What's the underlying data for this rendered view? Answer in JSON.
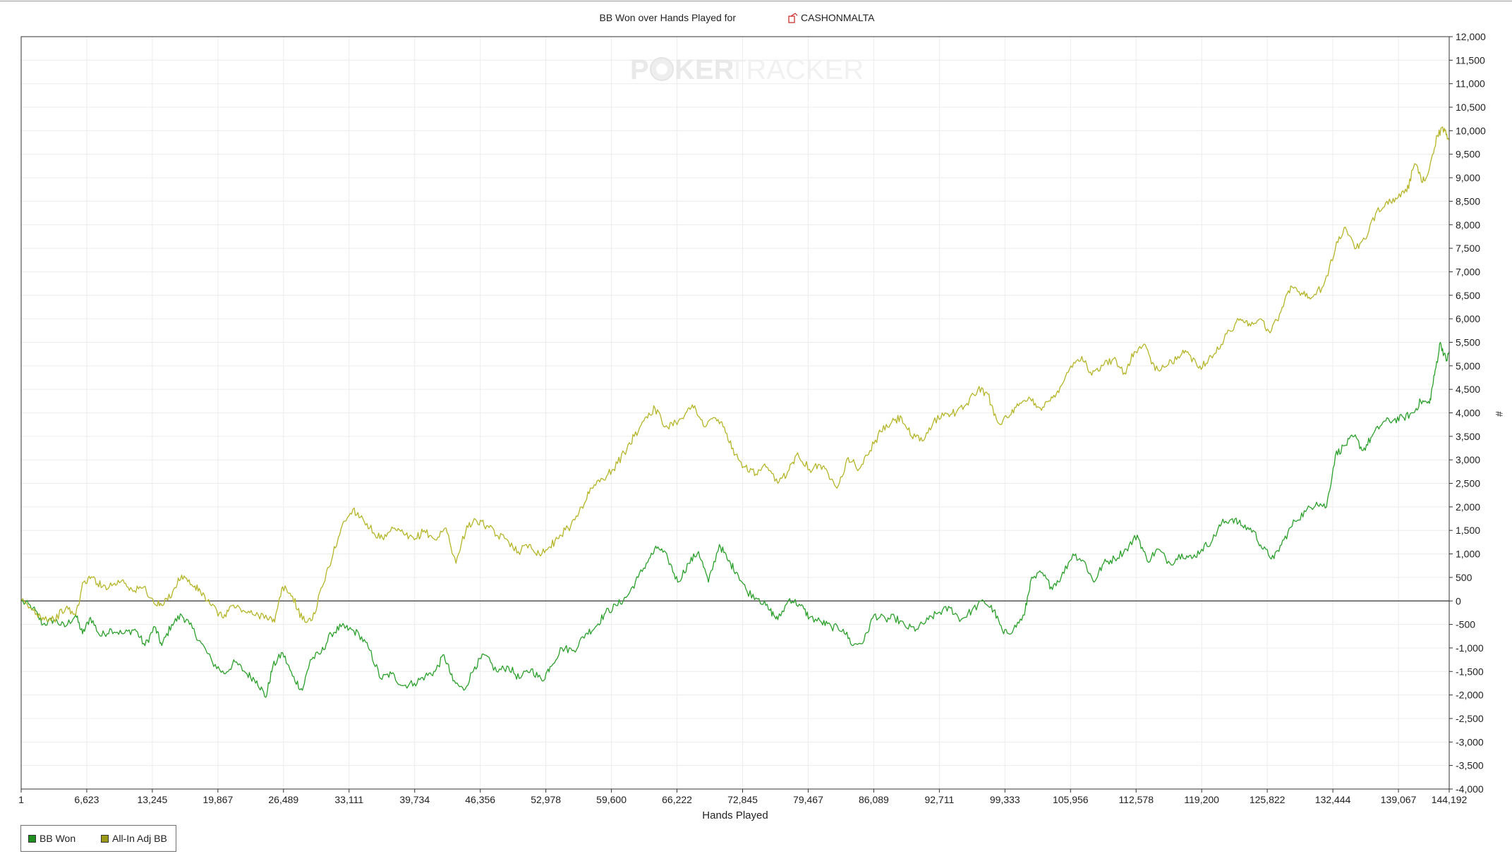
{
  "chart_data": {
    "type": "line",
    "title": "BB Won over Hands Played for",
    "player_name": "CASHONMALTA",
    "player_icon": "player-icon",
    "watermark": {
      "left": "P",
      "chip": "chip-icon",
      "middle": "KER",
      "right": "TRACKER"
    },
    "xlabel": "Hands Played",
    "ylabel": "#",
    "xlim": [
      1,
      144192
    ],
    "ylim": [
      -4000,
      12000
    ],
    "x_tick_labels": [
      "1",
      "6,623",
      "13,245",
      "19,867",
      "26,489",
      "33,111",
      "39,734",
      "46,356",
      "52,978",
      "59,600",
      "66,222",
      "72,845",
      "79,467",
      "86,089",
      "92,711",
      "99,333",
      "105,956",
      "112,578",
      "119,200",
      "125,822",
      "132,444",
      "139,067",
      "144,192"
    ],
    "y_tick_labels": [
      "12,000",
      "11,500",
      "11,000",
      "10,500",
      "10,000",
      "9,500",
      "9,000",
      "8,500",
      "8,000",
      "7,500",
      "7,000",
      "6,500",
      "6,000",
      "5,500",
      "5,000",
      "4,500",
      "4,000",
      "3,500",
      "3,000",
      "2,500",
      "2,000",
      "1,500",
      "1,000",
      "500",
      "0",
      "-500",
      "-1,000",
      "-1,500",
      "-2,000",
      "-2,500",
      "-3,000",
      "-3,500",
      "-4,000"
    ],
    "grid": true,
    "legend_position": "bottom-left",
    "series": [
      {
        "name": "BB Won",
        "color": "#2ca02c",
        "swatch_color": "#1f8f1f",
        "points": [
          [
            1,
            0
          ],
          [
            1200,
            -150
          ],
          [
            2200,
            -500
          ],
          [
            3300,
            -400
          ],
          [
            4400,
            -550
          ],
          [
            5500,
            -300
          ],
          [
            6200,
            -700
          ],
          [
            7000,
            -350
          ],
          [
            8000,
            -750
          ],
          [
            9100,
            -600
          ],
          [
            10300,
            -700
          ],
          [
            11500,
            -600
          ],
          [
            12500,
            -950
          ],
          [
            13500,
            -550
          ],
          [
            14200,
            -950
          ],
          [
            15200,
            -500
          ],
          [
            16200,
            -300
          ],
          [
            17000,
            -500
          ],
          [
            18200,
            -900
          ],
          [
            19300,
            -1300
          ],
          [
            20500,
            -1550
          ],
          [
            21600,
            -1300
          ],
          [
            22800,
            -1550
          ],
          [
            23800,
            -1700
          ],
          [
            24700,
            -2050
          ],
          [
            25400,
            -1400
          ],
          [
            26400,
            -1100
          ],
          [
            27400,
            -1600
          ],
          [
            28400,
            -1900
          ],
          [
            29200,
            -1250
          ],
          [
            30300,
            -1100
          ],
          [
            31300,
            -700
          ],
          [
            32300,
            -550
          ],
          [
            33100,
            -600
          ],
          [
            34100,
            -700
          ],
          [
            35200,
            -1050
          ],
          [
            36300,
            -1650
          ],
          [
            37400,
            -1550
          ],
          [
            38500,
            -1800
          ],
          [
            39700,
            -1750
          ],
          [
            40800,
            -1600
          ],
          [
            41800,
            -1500
          ],
          [
            42700,
            -1150
          ],
          [
            43600,
            -1700
          ],
          [
            44700,
            -1900
          ],
          [
            45800,
            -1400
          ],
          [
            46800,
            -1150
          ],
          [
            48000,
            -1500
          ],
          [
            49200,
            -1400
          ],
          [
            50300,
            -1650
          ],
          [
            51500,
            -1450
          ],
          [
            52600,
            -1700
          ],
          [
            53400,
            -1400
          ],
          [
            54600,
            -1000
          ],
          [
            55800,
            -1050
          ],
          [
            57000,
            -700
          ],
          [
            58000,
            -550
          ],
          [
            59000,
            -250
          ],
          [
            60100,
            -100
          ],
          [
            61200,
            100
          ],
          [
            62300,
            500
          ],
          [
            63400,
            900
          ],
          [
            64300,
            1150
          ],
          [
            65300,
            900
          ],
          [
            66300,
            400
          ],
          [
            67400,
            800
          ],
          [
            68400,
            1050
          ],
          [
            69400,
            400
          ],
          [
            70500,
            1200
          ],
          [
            71400,
            850
          ],
          [
            72300,
            600
          ],
          [
            73300,
            200
          ],
          [
            74500,
            50
          ],
          [
            75600,
            -200
          ],
          [
            76400,
            -400
          ],
          [
            77600,
            50
          ],
          [
            78700,
            -100
          ],
          [
            79600,
            -350
          ],
          [
            80800,
            -450
          ],
          [
            81800,
            -550
          ],
          [
            83000,
            -600
          ],
          [
            84000,
            -950
          ],
          [
            85100,
            -850
          ],
          [
            86100,
            -300
          ],
          [
            87300,
            -400
          ],
          [
            88200,
            -350
          ],
          [
            89300,
            -550
          ],
          [
            90400,
            -600
          ],
          [
            91600,
            -400
          ],
          [
            92600,
            -250
          ],
          [
            93800,
            -150
          ],
          [
            94900,
            -400
          ],
          [
            96000,
            -200
          ],
          [
            97200,
            0
          ],
          [
            98200,
            -200
          ],
          [
            99200,
            -700
          ],
          [
            100200,
            -600
          ],
          [
            101300,
            -300
          ],
          [
            101900,
            400
          ],
          [
            103000,
            600
          ],
          [
            104000,
            300
          ],
          [
            105000,
            500
          ],
          [
            106200,
            1000
          ],
          [
            107300,
            850
          ],
          [
            108300,
            400
          ],
          [
            109300,
            800
          ],
          [
            110400,
            900
          ],
          [
            111600,
            1100
          ],
          [
            112700,
            1400
          ],
          [
            113700,
            850
          ],
          [
            114800,
            1100
          ],
          [
            116000,
            800
          ],
          [
            117200,
            1000
          ],
          [
            118200,
            900
          ],
          [
            119200,
            1100
          ],
          [
            120300,
            1300
          ],
          [
            121200,
            1650
          ],
          [
            122300,
            1750
          ],
          [
            123300,
            1600
          ],
          [
            124400,
            1500
          ],
          [
            125400,
            1100
          ],
          [
            126500,
            900
          ],
          [
            127500,
            1300
          ],
          [
            128600,
            1700
          ],
          [
            129700,
            1900
          ],
          [
            130800,
            2100
          ],
          [
            131800,
            2000
          ],
          [
            132700,
            3100
          ],
          [
            133600,
            3300
          ],
          [
            134600,
            3500
          ],
          [
            135500,
            3200
          ],
          [
            136400,
            3500
          ],
          [
            137500,
            3800
          ],
          [
            138600,
            3850
          ],
          [
            139600,
            3900
          ],
          [
            140600,
            4000
          ],
          [
            141300,
            4250
          ],
          [
            142200,
            4200
          ],
          [
            142700,
            4800
          ],
          [
            143300,
            5500
          ],
          [
            143900,
            5100
          ],
          [
            144192,
            5300
          ]
        ]
      },
      {
        "name": "All-In Adj BB",
        "color": "#b5b52a",
        "swatch_color": "#9a9a18",
        "points": [
          [
            1,
            0
          ],
          [
            1200,
            -200
          ],
          [
            2200,
            -350
          ],
          [
            3300,
            -400
          ],
          [
            4500,
            -150
          ],
          [
            5500,
            -300
          ],
          [
            6300,
            400
          ],
          [
            7200,
            500
          ],
          [
            8200,
            300
          ],
          [
            9300,
            350
          ],
          [
            10300,
            450
          ],
          [
            11300,
            200
          ],
          [
            12400,
            300
          ],
          [
            13400,
            -50
          ],
          [
            14300,
            -100
          ],
          [
            15300,
            200
          ],
          [
            16200,
            550
          ],
          [
            17200,
            350
          ],
          [
            18100,
            200
          ],
          [
            19200,
            -100
          ],
          [
            20300,
            -350
          ],
          [
            21300,
            -100
          ],
          [
            22400,
            -200
          ],
          [
            23500,
            -300
          ],
          [
            24700,
            -300
          ],
          [
            25600,
            -450
          ],
          [
            26400,
            300
          ],
          [
            27400,
            100
          ],
          [
            28400,
            -400
          ],
          [
            29400,
            -400
          ],
          [
            30400,
            300
          ],
          [
            31500,
            1000
          ],
          [
            32400,
            1600
          ],
          [
            33500,
            1950
          ],
          [
            34500,
            1750
          ],
          [
            35600,
            1450
          ],
          [
            36600,
            1300
          ],
          [
            37700,
            1550
          ],
          [
            38700,
            1400
          ],
          [
            39700,
            1300
          ],
          [
            40700,
            1500
          ],
          [
            41800,
            1300
          ],
          [
            42900,
            1550
          ],
          [
            43900,
            800
          ],
          [
            45000,
            1600
          ],
          [
            46000,
            1700
          ],
          [
            47000,
            1600
          ],
          [
            48000,
            1400
          ],
          [
            49100,
            1300
          ],
          [
            50200,
            1050
          ],
          [
            51300,
            1200
          ],
          [
            52300,
            1000
          ],
          [
            53400,
            1150
          ],
          [
            54400,
            1400
          ],
          [
            55500,
            1600
          ],
          [
            56600,
            2000
          ],
          [
            57600,
            2400
          ],
          [
            58700,
            2600
          ],
          [
            59800,
            2800
          ],
          [
            60900,
            3150
          ],
          [
            61900,
            3500
          ],
          [
            63000,
            3900
          ],
          [
            64000,
            4100
          ],
          [
            65000,
            3700
          ],
          [
            66100,
            3800
          ],
          [
            67100,
            4000
          ],
          [
            68000,
            4150
          ],
          [
            69000,
            3700
          ],
          [
            70000,
            3900
          ],
          [
            71000,
            3700
          ],
          [
            72000,
            3100
          ],
          [
            73100,
            2850
          ],
          [
            74200,
            2700
          ],
          [
            75200,
            2850
          ],
          [
            76400,
            2500
          ],
          [
            77400,
            2750
          ],
          [
            78400,
            3150
          ],
          [
            79600,
            2800
          ],
          [
            80600,
            2900
          ],
          [
            81500,
            2700
          ],
          [
            82500,
            2450
          ],
          [
            83500,
            3050
          ],
          [
            84600,
            2800
          ],
          [
            85700,
            3200
          ],
          [
            86800,
            3600
          ],
          [
            87900,
            3800
          ],
          [
            88900,
            3900
          ],
          [
            89900,
            3500
          ],
          [
            91000,
            3400
          ],
          [
            92100,
            3800
          ],
          [
            93300,
            4000
          ],
          [
            94400,
            4000
          ],
          [
            95500,
            4200
          ],
          [
            96600,
            4500
          ],
          [
            97600,
            4400
          ],
          [
            98600,
            3800
          ],
          [
            99700,
            3900
          ],
          [
            100700,
            4150
          ],
          [
            101900,
            4300
          ],
          [
            102900,
            4100
          ],
          [
            103900,
            4250
          ],
          [
            104900,
            4550
          ],
          [
            106000,
            5000
          ],
          [
            107100,
            5200
          ],
          [
            108100,
            4800
          ],
          [
            109200,
            5000
          ],
          [
            110300,
            5150
          ],
          [
            111400,
            4850
          ],
          [
            112400,
            5300
          ],
          [
            113500,
            5450
          ],
          [
            114500,
            4900
          ],
          [
            115700,
            5000
          ],
          [
            116800,
            5200
          ],
          [
            117800,
            5300
          ],
          [
            118900,
            4950
          ],
          [
            119900,
            5150
          ],
          [
            120900,
            5350
          ],
          [
            122000,
            5750
          ],
          [
            123100,
            6000
          ],
          [
            124000,
            5900
          ],
          [
            125100,
            6000
          ],
          [
            126100,
            5700
          ],
          [
            127200,
            6150
          ],
          [
            128200,
            6700
          ],
          [
            129300,
            6550
          ],
          [
            130300,
            6450
          ],
          [
            131500,
            6700
          ],
          [
            132700,
            7500
          ],
          [
            133700,
            7950
          ],
          [
            134800,
            7500
          ],
          [
            135800,
            7700
          ],
          [
            136900,
            8300
          ],
          [
            137900,
            8500
          ],
          [
            138900,
            8550
          ],
          [
            139900,
            8700
          ],
          [
            140700,
            9300
          ],
          [
            141500,
            8900
          ],
          [
            142200,
            9200
          ],
          [
            143000,
            9900
          ],
          [
            143700,
            10050
          ],
          [
            144192,
            9800
          ]
        ]
      }
    ]
  }
}
